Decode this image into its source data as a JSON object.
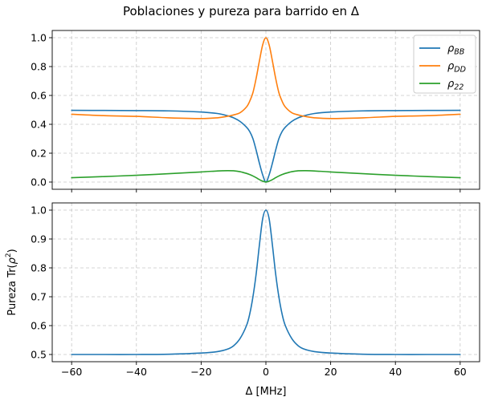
{
  "figure_title": "Poblaciones y pureza para barrido en Δ",
  "chart_data": [
    {
      "type": "line",
      "title": "",
      "xlabel": "",
      "ylabel": "",
      "xlim": [
        -66,
        66
      ],
      "ylim": [
        -0.05,
        1.05
      ],
      "xticks": [
        -60,
        -40,
        -20,
        0,
        20,
        40,
        60
      ],
      "xtick_labels_shown": false,
      "yticks": [
        0.0,
        0.2,
        0.4,
        0.6,
        0.8,
        1.0
      ],
      "ytick_labels": [
        "0.0",
        "0.2",
        "0.4",
        "0.6",
        "0.8",
        "1.0"
      ],
      "grid": true,
      "legend": "top-right",
      "series": [
        {
          "name": "ρBB",
          "name_main": "ρ",
          "name_sub": "BB",
          "color": "#1f77b4",
          "x": [
            -60,
            -50,
            -40,
            -30,
            -20,
            -15,
            -12,
            -10,
            -8,
            -6,
            -5,
            -4,
            -3,
            -2,
            -1,
            0,
            1,
            2,
            3,
            4,
            5,
            6,
            8,
            10,
            12,
            15,
            20,
            30,
            40,
            50,
            60
          ],
          "y": [
            0.497,
            0.496,
            0.495,
            0.493,
            0.485,
            0.475,
            0.46,
            0.445,
            0.42,
            0.38,
            0.35,
            0.3,
            0.22,
            0.13,
            0.05,
            0.0,
            0.05,
            0.13,
            0.22,
            0.3,
            0.35,
            0.38,
            0.42,
            0.445,
            0.46,
            0.475,
            0.485,
            0.493,
            0.495,
            0.496,
            0.497
          ]
        },
        {
          "name": "ρDD",
          "name_main": "ρ",
          "name_sub": "DD",
          "color": "#ff7f0e",
          "x": [
            -60,
            -50,
            -40,
            -30,
            -20,
            -15,
            -12,
            -10,
            -8,
            -6,
            -5,
            -4,
            -3,
            -2,
            -1,
            0,
            1,
            2,
            3,
            4,
            5,
            6,
            8,
            10,
            12,
            15,
            20,
            30,
            40,
            50,
            60
          ],
          "y": [
            0.47,
            0.46,
            0.455,
            0.445,
            0.44,
            0.445,
            0.455,
            0.465,
            0.48,
            0.52,
            0.56,
            0.62,
            0.72,
            0.84,
            0.95,
            1.0,
            0.95,
            0.84,
            0.72,
            0.62,
            0.56,
            0.52,
            0.48,
            0.465,
            0.455,
            0.445,
            0.44,
            0.445,
            0.455,
            0.46,
            0.47
          ]
        },
        {
          "name": "ρ22",
          "name_main": "ρ",
          "name_sub": "22",
          "color": "#2ca02c",
          "x": [
            -60,
            -50,
            -40,
            -30,
            -20,
            -15,
            -12,
            -10,
            -8,
            -6,
            -5,
            -4,
            -3,
            -2,
            -1,
            0,
            1,
            2,
            3,
            4,
            5,
            6,
            8,
            10,
            12,
            15,
            20,
            30,
            40,
            50,
            60
          ],
          "y": [
            0.03,
            0.038,
            0.047,
            0.058,
            0.07,
            0.077,
            0.079,
            0.078,
            0.072,
            0.06,
            0.052,
            0.042,
            0.03,
            0.017,
            0.006,
            0.0,
            0.006,
            0.017,
            0.03,
            0.042,
            0.052,
            0.06,
            0.072,
            0.078,
            0.079,
            0.077,
            0.07,
            0.058,
            0.047,
            0.038,
            0.03
          ]
        }
      ]
    },
    {
      "type": "line",
      "title": "",
      "xlabel": "Δ [MHz]",
      "ylabel": "Pureza Tr(ρ²)",
      "ylabel_text": "Pureza Tr(",
      "ylabel_rho": "ρ",
      "ylabel_sup": "2",
      "ylabel_close": ")",
      "xlim": [
        -66,
        66
      ],
      "ylim": [
        0.475,
        1.025
      ],
      "xticks": [
        -60,
        -40,
        -20,
        0,
        20,
        40,
        60
      ],
      "xtick_labels": [
        "−60",
        "−40",
        "−20",
        "0",
        "20",
        "40",
        "60"
      ],
      "yticks": [
        0.5,
        0.6,
        0.7,
        0.8,
        0.9,
        1.0
      ],
      "ytick_labels": [
        "0.5",
        "0.6",
        "0.7",
        "0.8",
        "0.9",
        "1.0"
      ],
      "grid": true,
      "series": [
        {
          "name": "",
          "color": "#1f77b4",
          "x": [
            -60,
            -50,
            -40,
            -30,
            -20,
            -15,
            -12,
            -10,
            -8,
            -6,
            -5,
            -4,
            -3,
            -2,
            -1,
            0,
            1,
            2,
            3,
            4,
            5,
            6,
            8,
            10,
            12,
            15,
            20,
            30,
            40,
            50,
            60
          ],
          "y": [
            0.5,
            0.5,
            0.5,
            0.501,
            0.505,
            0.51,
            0.518,
            0.53,
            0.555,
            0.6,
            0.64,
            0.7,
            0.78,
            0.88,
            0.97,
            1.0,
            0.97,
            0.88,
            0.78,
            0.7,
            0.64,
            0.6,
            0.555,
            0.53,
            0.518,
            0.51,
            0.505,
            0.501,
            0.5,
            0.5,
            0.5
          ]
        }
      ]
    }
  ]
}
